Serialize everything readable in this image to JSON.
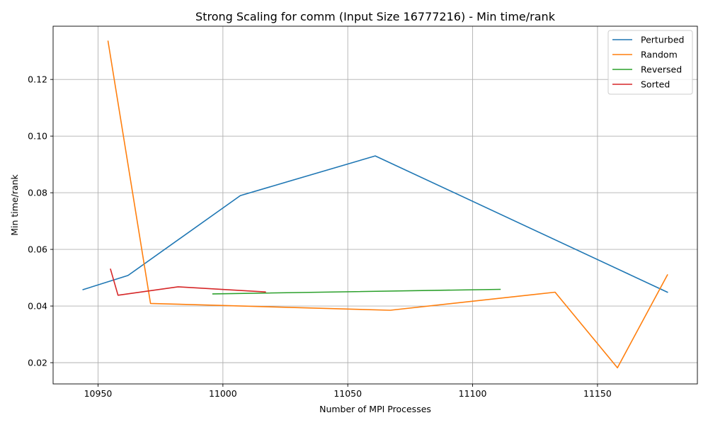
{
  "chart_data": {
    "type": "line",
    "title": "Strong Scaling for comm (Input Size 16777216) - Min time/rank",
    "xlabel": "Number of MPI Processes",
    "ylabel": "Min time/rank",
    "xlim": [
      10932,
      11190
    ],
    "ylim": [
      0.0125,
      0.1388
    ],
    "xticks": [
      10950,
      11000,
      11050,
      11100,
      11150
    ],
    "yticks": [
      0.02,
      0.04,
      0.06,
      0.08,
      0.1,
      0.12
    ],
    "xtick_labels": [
      "10950",
      "11000",
      "11050",
      "11100",
      "11150"
    ],
    "ytick_labels": [
      "0.02",
      "0.04",
      "0.06",
      "0.08",
      "0.10",
      "0.12"
    ],
    "grid": true,
    "legend_position": "top-right",
    "series": [
      {
        "name": "Perturbed",
        "color": "#1f77b4",
        "x": [
          10944,
          10962,
          11007,
          11061,
          11178
        ],
        "y": [
          0.0458,
          0.0508,
          0.079,
          0.093,
          0.0449
        ]
      },
      {
        "name": "Random",
        "color": "#ff7f0e",
        "x": [
          10954,
          10971,
          11067,
          11133,
          11158,
          11178
        ],
        "y": [
          0.1335,
          0.0409,
          0.0385,
          0.0449,
          0.0182,
          0.051
        ]
      },
      {
        "name": "Reversed",
        "color": "#2ca02c",
        "x": [
          10996,
          11111
        ],
        "y": [
          0.0443,
          0.0459
        ]
      },
      {
        "name": "Sorted",
        "color": "#d62728",
        "x": [
          10955,
          10958,
          10982,
          11017
        ],
        "y": [
          0.053,
          0.0438,
          0.0468,
          0.045
        ]
      }
    ]
  }
}
